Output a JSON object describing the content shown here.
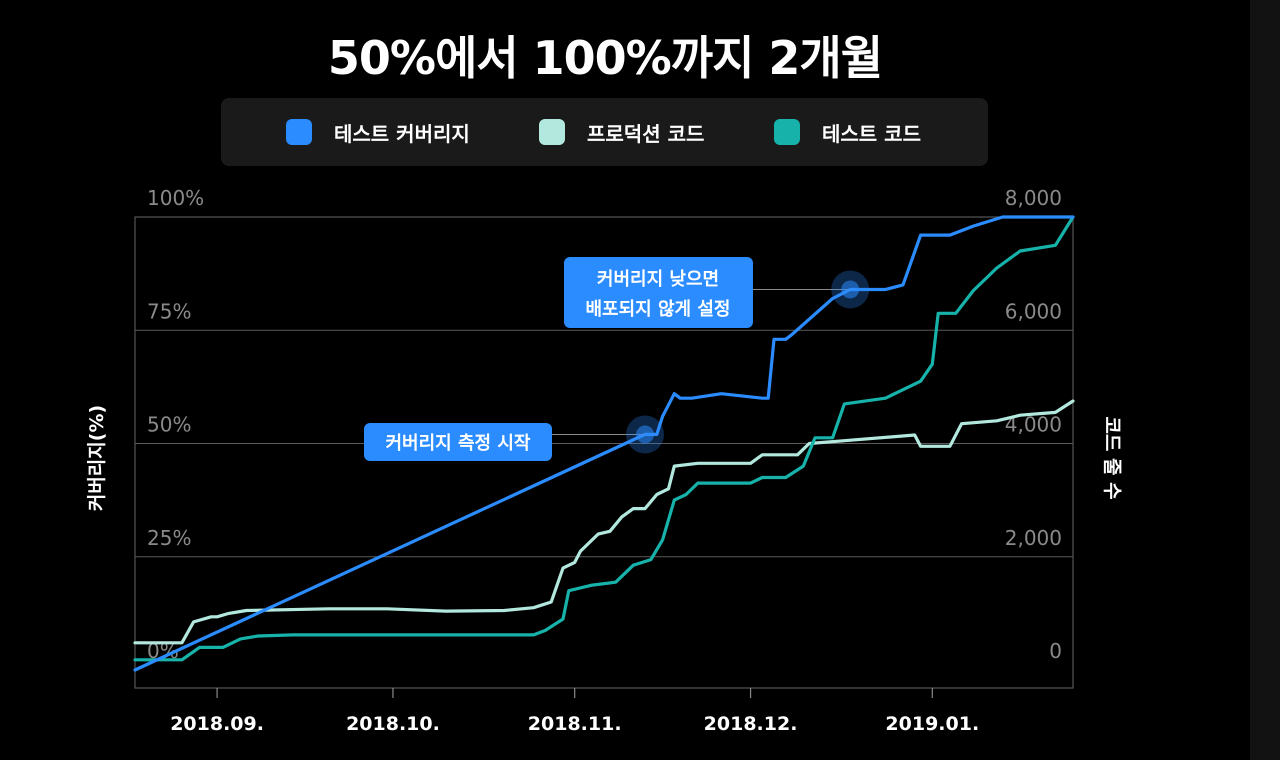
{
  "title": "50%에서 100%까지 2개월",
  "legend": [
    {
      "label": "테스트 커버리지",
      "color": "#2a8cff"
    },
    {
      "label": "프로덕션 코드",
      "color": "#b2e8dd"
    },
    {
      "label": "테스트 코드",
      "color": "#17b3aa"
    }
  ],
  "chart_data": {
    "type": "line",
    "title": "50%에서 100%까지 2개월",
    "xlabel": "",
    "ylabel": "커버리지(%)",
    "y2label": "코드 줄 수",
    "xlim": [
      "2018-08-18",
      "2019-01-25"
    ],
    "x_ticks": [
      "2018.09.",
      "2018.10.",
      "2018.11.",
      "2018.12.",
      "2019.01."
    ],
    "ylim": [
      0,
      100
    ],
    "y_ticks": [
      "0%",
      "25%",
      "50%",
      "75%",
      "100%"
    ],
    "y2lim": [
      0,
      8000
    ],
    "y2_ticks": [
      "0",
      "2,000",
      "4,000",
      "6,000",
      "8,000"
    ],
    "grid": "horizontal",
    "legend_position": "top",
    "series": [
      {
        "name": "테스트 커버리지",
        "axis": "left",
        "color": "#2a8cff",
        "points": [
          [
            "2018-08-18",
            0
          ],
          [
            "2018-11-13",
            52
          ],
          [
            "2018-11-15",
            52
          ],
          [
            "2018-11-16",
            56
          ],
          [
            "2018-11-18",
            61
          ],
          [
            "2018-11-19",
            60
          ],
          [
            "2018-11-21",
            60
          ],
          [
            "2018-11-26",
            61
          ],
          [
            "2018-12-03",
            60
          ],
          [
            "2018-12-04",
            60
          ],
          [
            "2018-12-05",
            73
          ],
          [
            "2018-12-07",
            73
          ],
          [
            "2018-12-08",
            74
          ],
          [
            "2018-12-15",
            82
          ],
          [
            "2018-12-18",
            84
          ],
          [
            "2018-12-24",
            84
          ],
          [
            "2018-12-27",
            85
          ],
          [
            "2018-12-30",
            96
          ],
          [
            "2019-01-04",
            96
          ],
          [
            "2019-01-08",
            98
          ],
          [
            "2019-01-13",
            100
          ],
          [
            "2019-01-25",
            100
          ]
        ]
      },
      {
        "name": "프로덕션 코드",
        "axis": "right",
        "color": "#b2e8dd",
        "points": [
          [
            "2018-08-18",
            480
          ],
          [
            "2018-08-26",
            480
          ],
          [
            "2018-08-28",
            850
          ],
          [
            "2018-08-31",
            940
          ],
          [
            "2018-09-01",
            940
          ],
          [
            "2018-09-03",
            1000
          ],
          [
            "2018-09-06",
            1050
          ],
          [
            "2018-09-20",
            1080
          ],
          [
            "2018-09-30",
            1080
          ],
          [
            "2018-10-10",
            1040
          ],
          [
            "2018-10-20",
            1050
          ],
          [
            "2018-10-25",
            1100
          ],
          [
            "2018-10-28",
            1200
          ],
          [
            "2018-10-30",
            1800
          ],
          [
            "2018-11-01",
            1900
          ],
          [
            "2018-11-02",
            2100
          ],
          [
            "2018-11-05",
            2400
          ],
          [
            "2018-11-07",
            2450
          ],
          [
            "2018-11-09",
            2700
          ],
          [
            "2018-11-11",
            2850
          ],
          [
            "2018-11-13",
            2850
          ],
          [
            "2018-11-15",
            3100
          ],
          [
            "2018-11-17",
            3200
          ],
          [
            "2018-11-18",
            3600
          ],
          [
            "2018-11-22",
            3650
          ],
          [
            "2018-12-01",
            3650
          ],
          [
            "2018-12-03",
            3800
          ],
          [
            "2018-12-09",
            3800
          ],
          [
            "2018-12-11",
            4000
          ],
          [
            "2018-12-17",
            4050
          ],
          [
            "2018-12-29",
            4150
          ],
          [
            "2018-12-30",
            3950
          ],
          [
            "2019-01-04",
            3950
          ],
          [
            "2019-01-06",
            4350
          ],
          [
            "2019-01-12",
            4400
          ],
          [
            "2019-01-16",
            4500
          ],
          [
            "2019-01-22",
            4550
          ],
          [
            "2019-01-25",
            4750
          ]
        ]
      },
      {
        "name": "테스트 코드",
        "axis": "right",
        "color": "#17b3aa",
        "points": [
          [
            "2018-08-18",
            180
          ],
          [
            "2018-08-26",
            180
          ],
          [
            "2018-08-29",
            400
          ],
          [
            "2018-09-02",
            400
          ],
          [
            "2018-09-05",
            550
          ],
          [
            "2018-09-08",
            600
          ],
          [
            "2018-09-14",
            620
          ],
          [
            "2018-10-25",
            620
          ],
          [
            "2018-10-27",
            700
          ],
          [
            "2018-10-30",
            900
          ],
          [
            "2018-10-31",
            1400
          ],
          [
            "2018-11-04",
            1500
          ],
          [
            "2018-11-08",
            1550
          ],
          [
            "2018-11-11",
            1850
          ],
          [
            "2018-11-14",
            1950
          ],
          [
            "2018-11-16",
            2300
          ],
          [
            "2018-11-18",
            3000
          ],
          [
            "2018-11-20",
            3100
          ],
          [
            "2018-11-22",
            3300
          ],
          [
            "2018-12-01",
            3300
          ],
          [
            "2018-12-03",
            3400
          ],
          [
            "2018-12-07",
            3400
          ],
          [
            "2018-12-10",
            3600
          ],
          [
            "2018-12-12",
            4100
          ],
          [
            "2018-12-15",
            4100
          ],
          [
            "2018-12-17",
            4700
          ],
          [
            "2018-12-24",
            4800
          ],
          [
            "2018-12-30",
            5100
          ],
          [
            "2019-01-01",
            5400
          ],
          [
            "2019-01-02",
            6300
          ],
          [
            "2019-01-05",
            6300
          ],
          [
            "2019-01-08",
            6700
          ],
          [
            "2019-01-12",
            7100
          ],
          [
            "2019-01-16",
            7400
          ],
          [
            "2019-01-22",
            7500
          ],
          [
            "2019-01-25",
            8000
          ]
        ]
      }
    ],
    "annotations": [
      {
        "text": "커버리지 측정 시작",
        "x": "2018-11-13",
        "y": 52
      },
      {
        "text": [
          "커버리지 낮으면",
          "배포되지 않게 설정"
        ],
        "x": "2018-12-18",
        "y": 84
      }
    ]
  }
}
